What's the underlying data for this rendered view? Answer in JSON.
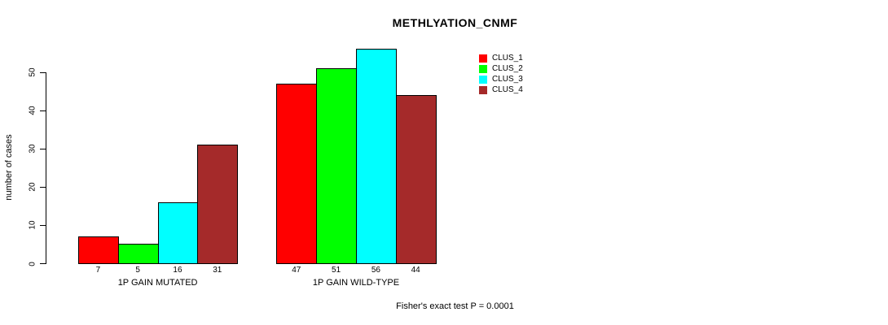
{
  "chart_data": {
    "type": "bar",
    "title": "METHLYATION_CNMF",
    "ylabel": "number of cases",
    "xlabel": "",
    "ylim": [
      0,
      50
    ],
    "yticks": [
      0,
      10,
      20,
      30,
      40,
      50
    ],
    "grid": false,
    "legend_position": "top-right-outside",
    "background_color": "#FFFFFF",
    "axis_color": "#000000",
    "bar_border_color": "#000000",
    "categories": [
      "1P GAIN MUTATED",
      "1P GAIN WILD-TYPE"
    ],
    "series": [
      {
        "name": "CLUS_1",
        "color": "#FF0000",
        "values": [
          7,
          47
        ]
      },
      {
        "name": "CLUS_2",
        "color": "#00FF00",
        "values": [
          5,
          51
        ]
      },
      {
        "name": "CLUS_3",
        "color": "#00FFFF",
        "values": [
          16,
          56
        ]
      },
      {
        "name": "CLUS_4",
        "color": "#A52A2A",
        "values": [
          31,
          44
        ]
      }
    ],
    "bar_value_labels": [
      [
        7,
        5,
        16,
        31
      ],
      [
        47,
        51,
        56,
        44
      ]
    ],
    "annotation": "Fisher's exact test P = 0.0001"
  }
}
